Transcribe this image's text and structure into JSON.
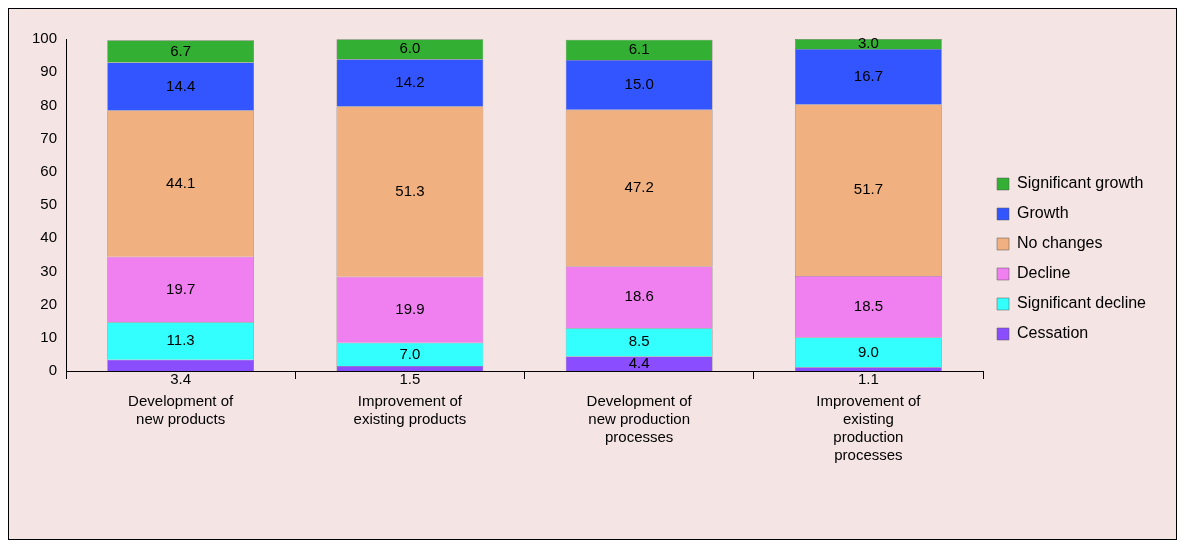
{
  "chart_data": {
    "type": "bar",
    "stacked": true,
    "categories": [
      "Development of new products",
      "Improvement of existing products",
      "Development of new production processes",
      "Improvement of existing production processes"
    ],
    "series": [
      {
        "name": "Cessation",
        "color": "#8a4dff",
        "values": [
          3.4,
          1.5,
          4.4,
          1.1
        ],
        "value_labels": [
          "3.4",
          "1.5",
          "4.4",
          "1.1"
        ]
      },
      {
        "name": "Significant decline",
        "color": "#33ffff",
        "values": [
          11.3,
          7.0,
          8.5,
          9.0
        ],
        "value_labels": [
          "11.3",
          "7.0",
          "8.5",
          "9.0"
        ]
      },
      {
        "name": "Decline",
        "color": "#f080f0",
        "values": [
          19.7,
          19.9,
          18.6,
          18.5
        ],
        "value_labels": [
          "19.7",
          "19.9",
          "18.6",
          "18.5"
        ]
      },
      {
        "name": "No changes",
        "color": "#f0b080",
        "values": [
          44.1,
          51.3,
          47.2,
          51.7
        ],
        "value_labels": [
          "44.1",
          "51.3",
          "47.2",
          "51.7"
        ]
      },
      {
        "name": "Growth",
        "color": "#3355ff",
        "values": [
          14.4,
          14.2,
          15.0,
          16.7
        ],
        "value_labels": [
          "14.4",
          "14.2",
          "15.0",
          "16.7"
        ]
      },
      {
        "name": "Significant growth",
        "color": "#33b033",
        "values": [
          6.7,
          6.0,
          6.1,
          3.0
        ],
        "value_labels": [
          "6.7",
          "6.0",
          "6.1",
          "3.0"
        ]
      }
    ],
    "ylim": [
      0,
      100
    ],
    "yticks": [
      0,
      10,
      20,
      30,
      40,
      50,
      60,
      70,
      80,
      90,
      100
    ],
    "grid": false,
    "legend": "right"
  }
}
